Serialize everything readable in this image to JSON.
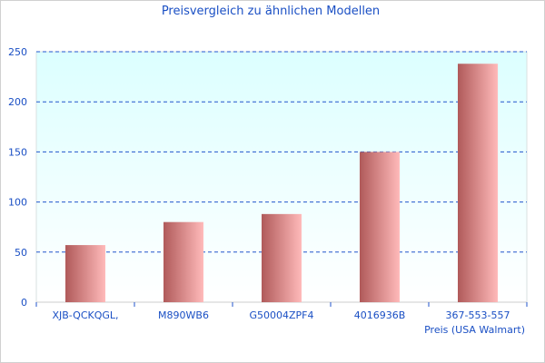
{
  "chart_data": {
    "type": "bar",
    "title": "Preisvergleich zu ähnlichen Modellen",
    "categories": [
      "XJB-QCKQGL,",
      "M890WB6",
      "G50004ZPF4",
      "4016936B",
      "367-553-557"
    ],
    "series": [
      {
        "name": "Preis (USA Walmart)",
        "values": [
          57,
          80,
          88,
          150,
          238
        ]
      }
    ],
    "xlabel": "Preis (USA Walmart)",
    "ylabel": "",
    "ylim": [
      0,
      250
    ],
    "yticks": [
      0,
      50,
      100,
      150,
      200,
      250
    ],
    "grid": true,
    "colors": {
      "bar_dark": "#b05a5a",
      "bar_light": "#ffbaba",
      "text": "#1a4fc4",
      "grid": "#2255cc",
      "plot_bg_top": "#dcffff",
      "plot_bg_bottom": "#ffffff"
    }
  }
}
